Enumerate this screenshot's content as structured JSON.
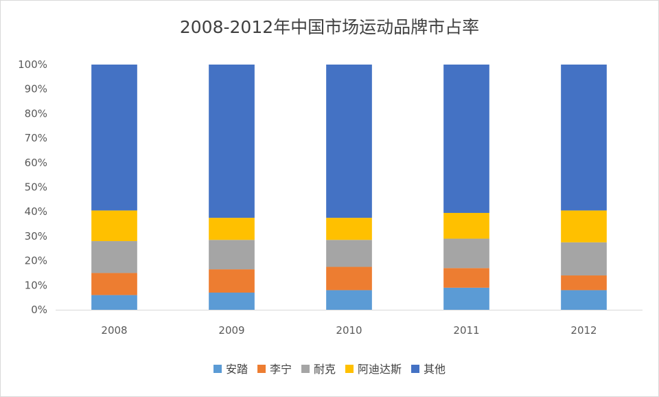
{
  "chart_data": {
    "type": "bar",
    "stacked": true,
    "normalized": true,
    "title": "2008-2012年中国市场运动品牌市占率",
    "xlabel": "",
    "ylabel": "",
    "categories": [
      "2008",
      "2009",
      "2010",
      "2011",
      "2012"
    ],
    "y_ticks": [
      "0%",
      "10%",
      "20%",
      "30%",
      "40%",
      "50%",
      "60%",
      "70%",
      "80%",
      "90%",
      "100%"
    ],
    "ylim": [
      0,
      100
    ],
    "grid": false,
    "legend_position": "bottom",
    "series": [
      {
        "name": "安踏",
        "color": "#5B9BD5",
        "values": [
          6,
          7,
          8,
          9,
          8
        ]
      },
      {
        "name": "李宁",
        "color": "#ED7D31",
        "values": [
          9,
          9.5,
          9.5,
          8,
          6
        ]
      },
      {
        "name": "耐克",
        "color": "#A5A5A5",
        "values": [
          13,
          12,
          11,
          12,
          13.5
        ]
      },
      {
        "name": "阿迪达斯",
        "color": "#FFC000",
        "values": [
          12.5,
          9,
          9,
          10.5,
          13
        ]
      },
      {
        "name": "其他",
        "color": "#4472C4",
        "values": [
          59.5,
          62.5,
          62.5,
          60.5,
          59.5
        ]
      }
    ]
  }
}
